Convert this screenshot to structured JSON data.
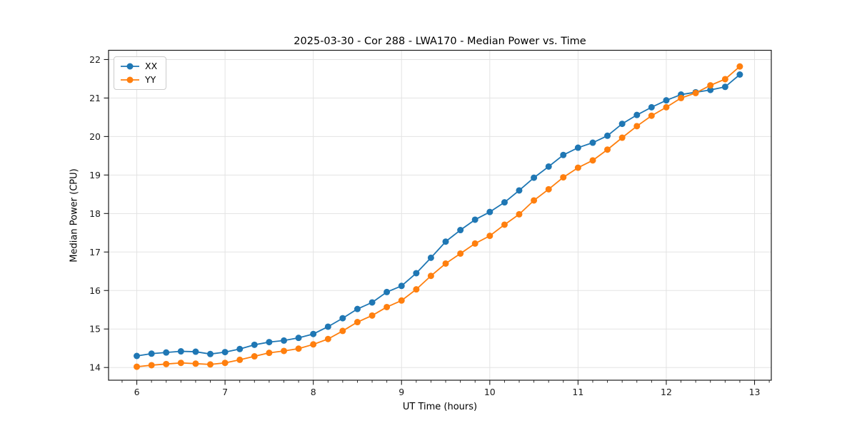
{
  "figure": {
    "title": "2025-03-30 - Cor 288 - LWA170 - Median Power vs. Time",
    "xlabel": "UT Time (hours)",
    "ylabel": "Median Power (CPU)",
    "background_color": "#ffffff",
    "spine_color": "#1a1a1a",
    "grid_color": "#e3e3e3",
    "tick_label_color": "#1a1a1a"
  },
  "chart_data": {
    "type": "line",
    "title": "2025-03-30 - Cor 288 - LWA170 - Median Power vs. Time",
    "xlabel": "UT Time (hours)",
    "ylabel": "Median Power (CPU)",
    "xlim": [
      5.68,
      13.19
    ],
    "ylim": [
      13.67,
      22.24
    ],
    "xticks": [
      6,
      7,
      8,
      9,
      10,
      11,
      12,
      13
    ],
    "yticks": [
      14,
      15,
      16,
      17,
      18,
      19,
      20,
      21,
      22
    ],
    "x_minor_interval": 0.16667,
    "grid": true,
    "legend_position": "upper-left",
    "marker": "circle",
    "marker_radius": 4.5,
    "line_width": 1.8,
    "x": [
      6.0,
      6.167,
      6.333,
      6.5,
      6.667,
      6.833,
      7.0,
      7.167,
      7.333,
      7.5,
      7.667,
      7.833,
      8.0,
      8.167,
      8.333,
      8.5,
      8.667,
      8.833,
      9.0,
      9.167,
      9.333,
      9.5,
      9.667,
      9.833,
      10.0,
      10.167,
      10.333,
      10.5,
      10.667,
      10.833,
      11.0,
      11.167,
      11.333,
      11.5,
      11.667,
      11.833,
      12.0,
      12.167,
      12.333,
      12.5,
      12.667,
      12.833
    ],
    "series": [
      {
        "name": "XX",
        "color": "#1f77b4",
        "values": [
          14.3,
          14.36,
          14.39,
          14.42,
          14.41,
          14.35,
          14.4,
          14.48,
          14.59,
          14.66,
          14.7,
          14.77,
          14.87,
          15.06,
          15.28,
          15.52,
          15.69,
          15.96,
          16.12,
          16.45,
          16.85,
          17.27,
          17.57,
          17.84,
          18.04,
          18.29,
          18.6,
          18.93,
          19.22,
          19.52,
          19.71,
          19.84,
          20.02,
          20.33,
          20.56,
          20.76,
          20.94,
          21.09,
          21.15,
          21.21,
          21.29,
          21.61
        ]
      },
      {
        "name": "YY",
        "color": "#ff7f0e",
        "values": [
          14.02,
          14.06,
          14.09,
          14.12,
          14.1,
          14.08,
          14.12,
          14.2,
          14.29,
          14.38,
          14.43,
          14.49,
          14.6,
          14.74,
          14.95,
          15.18,
          15.35,
          15.57,
          15.74,
          16.03,
          16.38,
          16.7,
          16.96,
          17.22,
          17.42,
          17.71,
          17.98,
          18.34,
          18.63,
          18.94,
          19.19,
          19.38,
          19.66,
          19.97,
          20.27,
          20.54,
          20.76,
          21.0,
          21.13,
          21.33,
          21.49,
          21.82
        ]
      }
    ]
  }
}
